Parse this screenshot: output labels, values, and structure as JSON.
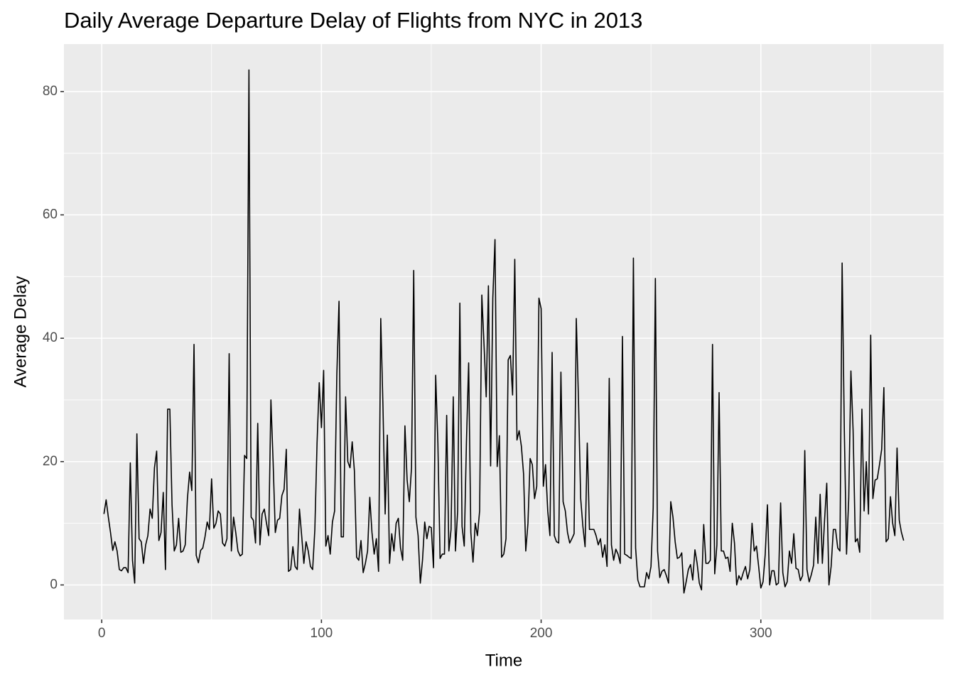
{
  "chart_data": {
    "type": "line",
    "title": "Daily Average Departure Delay of Flights from NYC in 2013",
    "x_label": "Time",
    "y_label": "Average Delay",
    "x": [
      1,
      2,
      3,
      4,
      5,
      6,
      7,
      8,
      9,
      10,
      11,
      12,
      13,
      14,
      15,
      16,
      17,
      18,
      19,
      20,
      21,
      22,
      23,
      24,
      25,
      26,
      27,
      28,
      29,
      30,
      31,
      32,
      33,
      34,
      35,
      36,
      37,
      38,
      39,
      40,
      41,
      42,
      43,
      44,
      45,
      46,
      47,
      48,
      49,
      50,
      51,
      52,
      53,
      54,
      55,
      56,
      57,
      58,
      59,
      60,
      61,
      62,
      63,
      64,
      65,
      66,
      67,
      68,
      69,
      70,
      71,
      72,
      73,
      74,
      75,
      76,
      77,
      78,
      79,
      80,
      81,
      82,
      83,
      84,
      85,
      86,
      87,
      88,
      89,
      90,
      91,
      92,
      93,
      94,
      95,
      96,
      97,
      98,
      99,
      100,
      101,
      102,
      103,
      104,
      105,
      106,
      107,
      108,
      109,
      110,
      111,
      112,
      113,
      114,
      115,
      116,
      117,
      118,
      119,
      120,
      121,
      122,
      123,
      124,
      125,
      126,
      127,
      128,
      129,
      130,
      131,
      132,
      133,
      134,
      135,
      136,
      137,
      138,
      139,
      140,
      141,
      142,
      143,
      144,
      145,
      146,
      147,
      148,
      149,
      150,
      151,
      152,
      153,
      154,
      155,
      156,
      157,
      158,
      159,
      160,
      161,
      162,
      163,
      164,
      165,
      166,
      167,
      168,
      169,
      170,
      171,
      172,
      173,
      174,
      175,
      176,
      177,
      178,
      179,
      180,
      181,
      182,
      183,
      184,
      185,
      186,
      187,
      188,
      189,
      190,
      191,
      192,
      193,
      194,
      195,
      196,
      197,
      198,
      199,
      200,
      201,
      202,
      203,
      204,
      205,
      206,
      207,
      208,
      209,
      210,
      211,
      212,
      213,
      214,
      215,
      216,
      217,
      218,
      219,
      220,
      221,
      222,
      223,
      224,
      225,
      226,
      227,
      228,
      229,
      230,
      231,
      232,
      233,
      234,
      235,
      236,
      237,
      238,
      239,
      240,
      241,
      242,
      243,
      244,
      245,
      246,
      247,
      248,
      249,
      250,
      251,
      252,
      253,
      254,
      255,
      256,
      257,
      258,
      259,
      260,
      261,
      262,
      263,
      264,
      265,
      266,
      267,
      268,
      269,
      270,
      271,
      272,
      273,
      274,
      275,
      276,
      277,
      278,
      279,
      280,
      281,
      282,
      283,
      284,
      285,
      286,
      287,
      288,
      289,
      290,
      291,
      292,
      293,
      294,
      295,
      296,
      297,
      298,
      299,
      300,
      301,
      302,
      303,
      304,
      305,
      306,
      307,
      308,
      309,
      310,
      311,
      312,
      313,
      314,
      315,
      316,
      317,
      318,
      319,
      320,
      321,
      322,
      323,
      324,
      325,
      326,
      327,
      328,
      329,
      330,
      331,
      332,
      333,
      334,
      335,
      336,
      337,
      338,
      339,
      340,
      341,
      342,
      343,
      344,
      345,
      346,
      347,
      348,
      349,
      350,
      351,
      352,
      353,
      354,
      355,
      356,
      357,
      358,
      359,
      360,
      361,
      362,
      363,
      364,
      365
    ],
    "values": [
      11.5,
      13.8,
      11,
      8.5,
      5.6,
      7,
      5.5,
      2.5,
      2.3,
      2.8,
      2.8,
      2,
      19.8,
      4,
      0.3,
      24.5,
      7.5,
      7,
      3.5,
      6.5,
      8,
      12.3,
      10.8,
      19,
      21.7,
      7.2,
      8.5,
      15,
      2.5,
      28.5,
      28.5,
      13,
      5.5,
      6.5,
      10.8,
      5.3,
      5.5,
      6.5,
      14,
      18.3,
      15.3,
      39,
      4.8,
      3.6,
      5.6,
      6,
      7.8,
      10.2,
      9,
      17.2,
      9.2,
      10,
      12,
      11.5,
      6.8,
      6.3,
      7.5,
      37.5,
      5.5,
      11,
      8.5,
      5.5,
      4.7,
      5,
      21,
      20.5,
      83.5,
      11,
      10.5,
      6.8,
      26.2,
      6.5,
      11.5,
      12.3,
      10,
      8,
      30,
      20,
      8.5,
      10.5,
      10.8,
      14.5,
      15.5,
      22,
      2.2,
      2.5,
      6.2,
      3,
      2.5,
      12.3,
      8,
      3.5,
      7,
      5.5,
      3,
      2.5,
      9,
      23,
      32.8,
      25.5,
      34.8,
      6.3,
      8,
      5,
      10.2,
      12,
      34,
      46,
      7.8,
      7.8,
      30.5,
      20,
      19,
      23.2,
      18.5,
      4.5,
      4,
      7.2,
      2,
      3.5,
      5.5,
      14.2,
      8.5,
      5,
      7.5,
      2.2,
      43.2,
      29,
      11.5,
      24.3,
      3.5,
      8.3,
      5.5,
      10,
      10.8,
      6,
      4,
      25.8,
      17,
      13.5,
      19,
      51,
      11,
      8,
      0.3,
      4,
      10.2,
      7.5,
      9.5,
      9.3,
      2.8,
      34,
      23,
      4.3,
      5,
      5,
      27.5,
      5.5,
      9,
      30.5,
      5.5,
      12,
      45.7,
      9.5,
      6.3,
      23.2,
      36,
      8.5,
      3.7,
      10,
      8,
      12,
      47,
      39,
      30.5,
      48.5,
      19.3,
      46.5,
      56,
      19.2,
      24.2,
      4.5,
      5,
      7.5,
      36.5,
      37.2,
      30.8,
      52.8,
      23.5,
      25,
      22.5,
      18,
      5.5,
      10,
      20.5,
      19.5,
      14,
      16,
      46.5,
      44.8,
      16,
      19.5,
      12,
      8,
      37.7,
      8,
      7,
      6.8,
      34.5,
      13.5,
      12,
      8.5,
      6.8,
      7.5,
      8.3,
      43.2,
      30,
      14,
      9.5,
      6.2,
      23,
      9,
      9,
      9,
      8,
      6.5,
      7.5,
      4.5,
      6.5,
      3,
      33.5,
      6.5,
      4,
      5.8,
      5,
      3.5,
      40.3,
      5,
      4.8,
      4.5,
      4.3,
      53,
      6,
      0.8,
      -0.3,
      -0.3,
      -0.3,
      2,
      1,
      3,
      12.5,
      49.7,
      5.5,
      1.2,
      2.2,
      2.5,
      1.5,
      0.3,
      13.5,
      11,
      7,
      4.3,
      4.5,
      5.2,
      -1.3,
      0.5,
      2.5,
      3.3,
      0.8,
      5.7,
      3.5,
      0.3,
      -0.8,
      9.8,
      3.5,
      3.5,
      4,
      39,
      1.8,
      6.5,
      31.2,
      5.5,
      5.5,
      4.3,
      4.5,
      2.2,
      10,
      6.8,
      0,
      1.5,
      0.8,
      2,
      3,
      1,
      2.5,
      10,
      5.5,
      6.3,
      3,
      -0.5,
      0.5,
      5,
      13,
      0,
      2.3,
      2.3,
      0,
      0.3,
      13.3,
      2,
      -0.3,
      0.5,
      5.5,
      3.5,
      8.3,
      2.7,
      2.5,
      0.7,
      1.5,
      21.8,
      2.5,
      0.5,
      1.7,
      3.2,
      11,
      3.5,
      14.7,
      3.5,
      10.5,
      16.5,
      0,
      3,
      9,
      9,
      6,
      5.5,
      52.2,
      25,
      5,
      14,
      34.7,
      25,
      7,
      7.5,
      5.3,
      28.5,
      12,
      20,
      11.5,
      40.5,
      14,
      17,
      17.2,
      19.5,
      22,
      32,
      7,
      7.5,
      14.3,
      10,
      8,
      22.2,
      10.5,
      8.5,
      7.2
    ],
    "color": "#000000",
    "xlim": [
      -17.2,
      383.2
    ],
    "ylim": [
      -5.6,
      87.7
    ],
    "xticks": [
      0,
      100,
      200,
      300
    ],
    "yticks": [
      0,
      20,
      40,
      60,
      80
    ],
    "x_minor_grid": [
      50,
      150,
      250,
      350
    ],
    "y_minor_grid": [
      10,
      30,
      50,
      70
    ],
    "grid": true
  }
}
